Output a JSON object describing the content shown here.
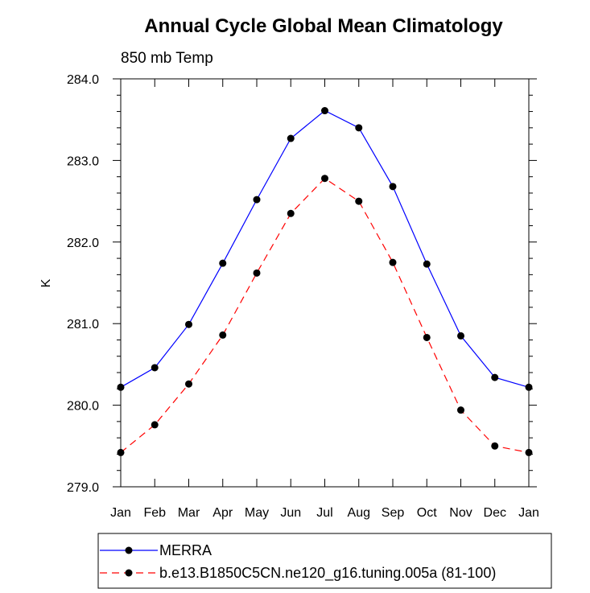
{
  "chart_data": {
    "type": "line",
    "title": "Annual Cycle Global Mean Climatology",
    "subtitle": "850 mb Temp",
    "xlabel": "",
    "ylabel": "K",
    "categories": [
      "Jan",
      "Feb",
      "Mar",
      "Apr",
      "May",
      "Jun",
      "Jul",
      "Aug",
      "Sep",
      "Oct",
      "Nov",
      "Dec",
      "Jan"
    ],
    "ylim": [
      279.0,
      284.0
    ],
    "yticks": [
      "279.0",
      "280.0",
      "281.0",
      "282.0",
      "283.0",
      "284.0"
    ],
    "grid": false,
    "legend_position": "bottom",
    "series": [
      {
        "name": "MERRA",
        "color": "#0000ff",
        "dash": "solid",
        "values": [
          280.22,
          280.46,
          280.99,
          281.74,
          282.52,
          283.27,
          283.61,
          283.4,
          282.68,
          281.73,
          280.85,
          280.34,
          280.22
        ]
      },
      {
        "name": "b.e13.B1850C5CN.ne120_g16.tuning.005a (81-100)",
        "color": "#ff0000",
        "dash": "dashed",
        "values": [
          279.42,
          279.76,
          280.26,
          280.86,
          281.62,
          282.35,
          282.78,
          282.5,
          281.75,
          280.83,
          279.94,
          279.5,
          279.42
        ]
      }
    ]
  }
}
